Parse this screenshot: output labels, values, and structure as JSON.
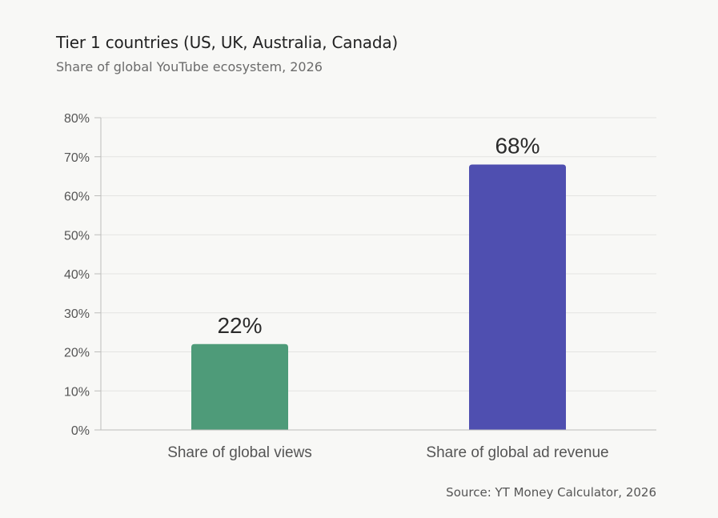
{
  "header": {
    "title": "Tier 1 countries (US, UK, Australia, Canada)",
    "subtitle": "Share of global YouTube ecosystem, 2026"
  },
  "footer": {
    "source": "Source: YT Money Calculator, 2026"
  },
  "chart_data": {
    "type": "bar",
    "title": "Tier 1 countries (US, UK, Australia, Canada)",
    "subtitle": "Share of global YouTube ecosystem, 2026",
    "xlabel": "",
    "ylabel": "",
    "categories": [
      "Share of global views",
      "Share of global ad revenue"
    ],
    "values": [
      22,
      68
    ],
    "data_labels": [
      "22%",
      "68%"
    ],
    "colors": [
      "#4e9b79",
      "#4f4fb0"
    ],
    "ylim": [
      0,
      80
    ],
    "yticks": [
      0,
      10,
      20,
      30,
      40,
      50,
      60,
      70,
      80
    ],
    "ytick_labels": [
      "0%",
      "10%",
      "20%",
      "30%",
      "40%",
      "50%",
      "60%",
      "70%",
      "80%"
    ],
    "grid": true,
    "legend": "none"
  }
}
